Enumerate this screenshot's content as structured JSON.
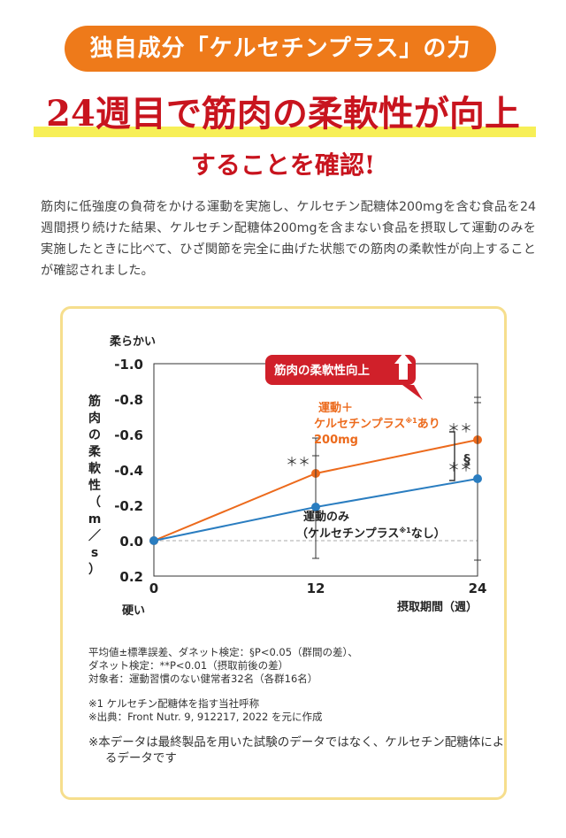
{
  "header": {
    "pill_text": "独自成分「ケルセチンプラス」の力",
    "headline": "24週目で筋肉の柔軟性が向上",
    "subhead": "することを確認!"
  },
  "intro": {
    "paragraph": "筋肉に低強度の負荷をかける運動を実施し、ケルセチン配糖体200mgを含む食品を24週間摂り続けた結果、ケルセチン配糖体200mgを含まない食品を摂取して運動のみを実施したときに比べて、ひざ関節を完全に曲げた状態での筋肉の柔軟性が向上することが確認されました。"
  },
  "chart_data": {
    "type": "line",
    "x": [
      0,
      12,
      24
    ],
    "xlabel": "摂取期間（週）",
    "ylabel": "筋肉の柔軟性（m／s）",
    "ylim": [
      -1.0,
      0.2
    ],
    "y_reversed": true,
    "yticks": [
      "-1.0",
      "-0.8",
      "-0.6",
      "-0.4",
      "-0.2",
      "0.0",
      "0.2"
    ],
    "ytick_values": [
      -1.0,
      -0.8,
      -0.6,
      -0.4,
      -0.2,
      0.0,
      0.2
    ],
    "xticks": [
      "0",
      "12",
      "24"
    ],
    "y_top_label": "柔らかい",
    "y_bottom_label": "硬い",
    "callout": "筋肉の柔軟性向上",
    "grid": false,
    "series": [
      {
        "label_lines": [
          "運動＋",
          "ケルセチンプラス",
          "あり",
          "200mg"
        ],
        "sup": "※1",
        "color": "#ec6a1c",
        "values": [
          0.0,
          -0.38,
          -0.57
        ],
        "error": [
          null,
          0.2,
          0.21
        ],
        "markers": [
          "",
          "＊＊",
          "＊＊"
        ]
      },
      {
        "label_lines": [
          "運動のみ",
          "（ケルセチンプラス",
          "なし）"
        ],
        "sup": "※1",
        "color": "#2a7dc0",
        "values": [
          0.0,
          -0.19,
          -0.35
        ],
        "error": [
          null,
          0.29,
          0.46
        ],
        "markers": [
          "",
          "",
          "＊＊"
        ]
      }
    ],
    "bracket_label": "§"
  },
  "notes": {
    "lines": [
      "平均値±標準誤差、ダネット検定：§P<0.05（群間の差）、",
      "ダネット検定：**P<0.01（摂取前後の差）",
      "対象者：運動習慣のない健常者32名（各群16名）",
      "※1 ケルセチン配糖体を指す当社呼称",
      "※出典：Front Nutr. 9, 912217, 2022 を元に作成"
    ],
    "disclaimer": "※本データは最終製品を用いた試験のデータではなく、ケルセチン配糖体によるデータです"
  },
  "colors": {
    "accent_orange": "#ee7a1a",
    "headline_red": "#c8141e",
    "highlight_yellow": "#f7ef57",
    "card_border": "#f6de8d",
    "callout_red": "#d0202a"
  }
}
